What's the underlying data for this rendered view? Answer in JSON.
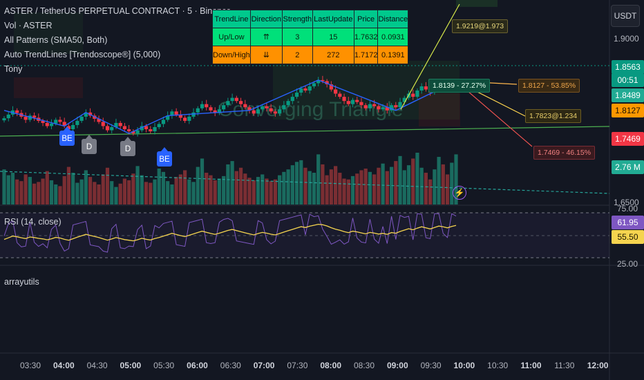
{
  "header": {
    "title": "ASTER / TetherUS PERPETUAL CONTRACT · 5 · Binance",
    "indicators": [
      "Vol · ASTER",
      "All Patterns (SMA50, Both)",
      "Auto TrendLines [Trendoscope®] (5,000)",
      "Tony"
    ],
    "currency": "USDT"
  },
  "trend_table": {
    "headers": [
      "TrendLine",
      "Direction",
      "Strength",
      "LastUpdate",
      "Price",
      "Distance"
    ],
    "rows": [
      [
        "Up/Low",
        "⇈",
        "3",
        "15",
        "1.7632",
        "0.0931"
      ],
      [
        "Down/High",
        "⇊",
        "2",
        "272",
        "1.7172",
        "0.1391"
      ]
    ]
  },
  "pattern_label": "Converging Triangle",
  "patterns": [
    "BE",
    "D",
    "D",
    "BE"
  ],
  "targets": {
    "up": "1.9219@1.973",
    "green": "1.8139 - 27.27%",
    "mid": "1.8127 - 53.85%",
    "mid2": "1.7823@1.234",
    "down": "1.7469 - 46.15%"
  },
  "price_axis": {
    "ticks": [
      "1.9000",
      "1.6500"
    ],
    "badges": [
      {
        "text": "1.8563",
        "color": "#089981"
      },
      {
        "text": "00:51",
        "color": "#089981"
      },
      {
        "text": "1.8489",
        "color": "#22ab94"
      },
      {
        "text": "1.8127",
        "color": "#ff9800"
      },
      {
        "text": "1.7469",
        "color": "#f23645"
      },
      {
        "text": "2.76 M",
        "color": "#22ab94"
      }
    ]
  },
  "rsi": {
    "label": "RSI (14, close)",
    "ticks": [
      "75.00",
      "25.00"
    ],
    "badges": [
      {
        "text": "61.95",
        "color": "#7e57c2"
      },
      {
        "text": "55.50",
        "color": "#f5d44f"
      }
    ]
  },
  "extra_pane_label": "arrayutils",
  "time_axis": {
    "ticks": [
      "03:30",
      "04:00",
      "04:30",
      "05:00",
      "05:30",
      "06:00",
      "06:30",
      "07:00",
      "07:30",
      "08:00",
      "08:30",
      "09:00",
      "09:30",
      "10:00",
      "10:30",
      "11:00",
      "11:30",
      "12:00"
    ],
    "bold": [
      "04:00",
      "05:00",
      "06:00",
      "07:00",
      "08:00",
      "09:00",
      "10:00",
      "11:00",
      "12:00"
    ]
  },
  "chart_data": {
    "type": "candlestick",
    "symbol": "ASTER / TetherUS PERPETUAL CONTRACT",
    "interval": "5",
    "ylim": [
      1.62,
      1.99
    ],
    "closes": [
      1.785,
      1.792,
      1.8,
      1.795,
      1.788,
      1.782,
      1.79,
      1.786,
      1.78,
      1.776,
      1.77,
      1.775,
      1.782,
      1.778,
      1.77,
      1.764,
      1.772,
      1.78,
      1.788,
      1.796,
      1.79,
      1.784,
      1.778,
      1.77,
      1.762,
      1.768,
      1.776,
      1.77,
      1.764,
      1.76,
      1.756,
      1.762,
      1.77,
      1.764,
      1.76,
      1.768,
      1.774,
      1.782,
      1.79,
      1.798,
      1.792,
      1.786,
      1.78,
      1.788,
      1.796,
      1.804,
      1.812,
      1.806,
      1.8,
      1.795,
      1.802,
      1.81,
      1.818,
      1.824,
      1.818,
      1.812,
      1.806,
      1.8,
      1.794,
      1.802,
      1.808,
      1.804,
      1.798,
      1.794,
      1.802,
      1.81,
      1.818,
      1.826,
      1.834,
      1.842,
      1.838,
      1.846,
      1.852,
      1.858,
      1.856,
      1.85,
      1.84,
      1.832,
      1.826,
      1.818,
      1.812,
      1.82,
      1.816,
      1.81,
      1.804,
      1.812,
      1.808,
      1.802,
      1.806,
      1.8,
      1.81,
      1.806,
      1.816,
      1.824,
      1.832,
      1.826,
      1.838,
      1.846,
      1.84,
      1.834,
      1.844,
      1.852,
      1.848,
      1.842,
      1.85,
      1.856
    ],
    "volume": [
      42,
      35,
      38,
      30,
      28,
      36,
      33,
      25,
      27,
      31,
      40,
      29,
      24,
      22,
      34,
      45,
      38,
      26,
      30,
      41,
      33,
      27,
      24,
      36,
      44,
      28,
      21,
      25,
      31,
      29,
      37,
      46,
      35,
      27,
      26,
      30,
      43,
      39,
      28,
      24,
      33,
      36,
      41,
      30,
      27,
      45,
      55,
      38,
      35,
      29,
      31,
      34,
      48,
      52,
      40,
      44,
      37,
      32,
      29,
      33,
      36,
      31,
      28,
      30,
      35,
      39,
      42,
      47,
      51,
      53,
      44,
      40,
      38,
      60,
      48,
      35,
      42,
      46,
      38,
      31,
      30,
      34,
      37,
      41,
      43,
      39,
      36,
      44,
      49,
      40,
      45,
      52,
      58,
      41,
      47,
      55,
      62,
      44,
      38,
      30,
      42,
      57,
      48,
      36,
      50,
      60
    ]
  }
}
